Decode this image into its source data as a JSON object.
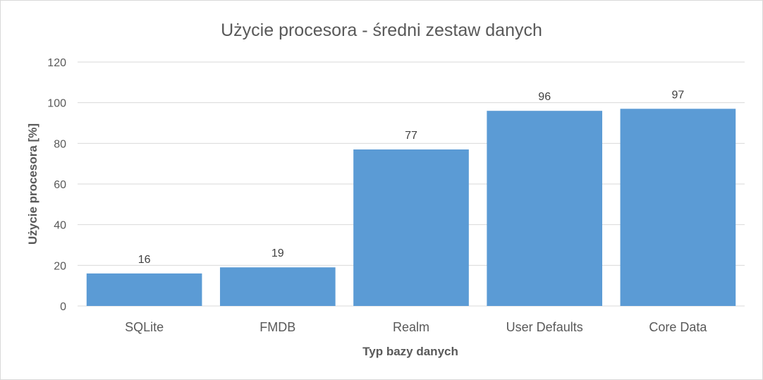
{
  "chart_data": {
    "type": "bar",
    "title": "Użycie procesora - średni zestaw danych",
    "xlabel": "Typ bazy danych",
    "ylabel": "Użycie procesora [%]",
    "categories": [
      "SQLite",
      "FMDB",
      "Realm",
      "User Defaults",
      "Core Data"
    ],
    "values": [
      16,
      19,
      77,
      96,
      97
    ],
    "ylim": [
      0,
      120
    ],
    "yticks": [
      "0",
      "20",
      "40",
      "60",
      "80",
      "100",
      "120"
    ],
    "grid": true,
    "legend": "none",
    "bar_color": "#5b9bd5",
    "grid_color": "#d9d9d9"
  }
}
